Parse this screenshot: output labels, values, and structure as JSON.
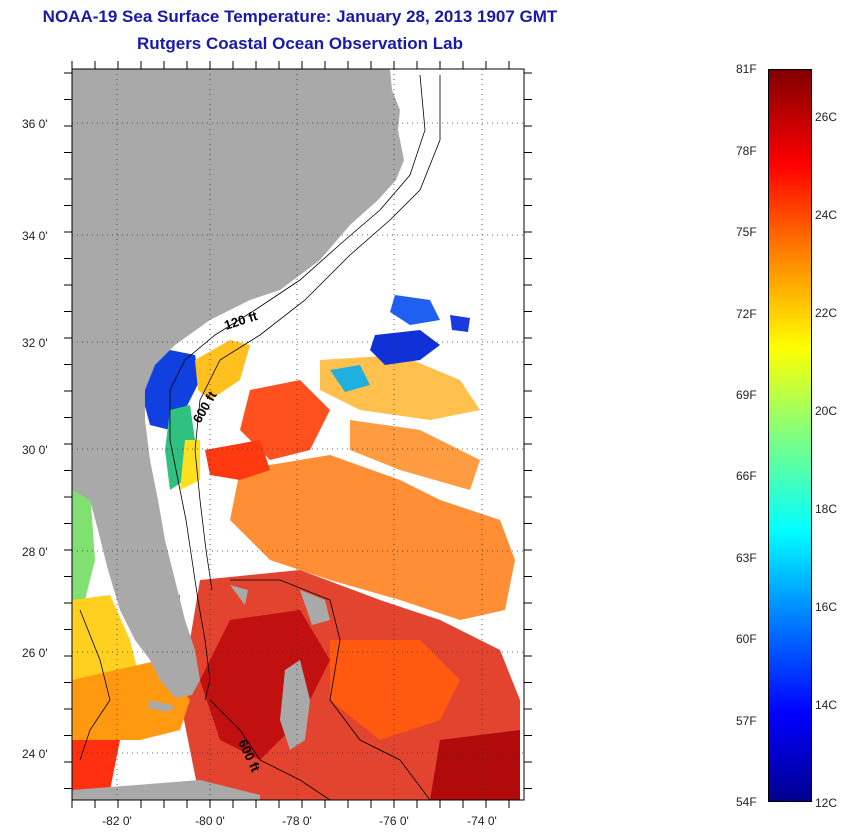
{
  "title": {
    "line1": "NOAA-19 Sea Surface Temperature:  January 28, 2013 1907 GMT",
    "line2": "Rutgers Coastal Ocean Observation Lab"
  },
  "map": {
    "lat_labels": [
      "36 0'",
      "34 0'",
      "32 0'",
      "30 0'",
      "28 0'",
      "26 0'",
      "24 0'"
    ],
    "lon_labels": [
      "-82 0'",
      "-80 0'",
      "-78 0'",
      "-76 0'",
      "-74 0'"
    ],
    "contour_labels": [
      "120 ft",
      "600 ft",
      "600 ft"
    ],
    "land_color": "#a9a9a9",
    "no_data_color": "#ffffff"
  },
  "colorbar": {
    "fahrenheit_labels": [
      "81F",
      "78F",
      "75F",
      "72F",
      "69F",
      "66F",
      "63F",
      "60F",
      "57F",
      "54F"
    ],
    "celsius_labels": [
      "26C",
      "24C",
      "22C",
      "20C",
      "18C",
      "16C",
      "14C",
      "12C"
    ],
    "range_c": [
      12,
      27
    ],
    "colors": [
      "#00008f",
      "#0000ff",
      "#0080ff",
      "#00ffff",
      "#80ff80",
      "#ffff00",
      "#ff8000",
      "#ff0000",
      "#800000"
    ]
  }
}
